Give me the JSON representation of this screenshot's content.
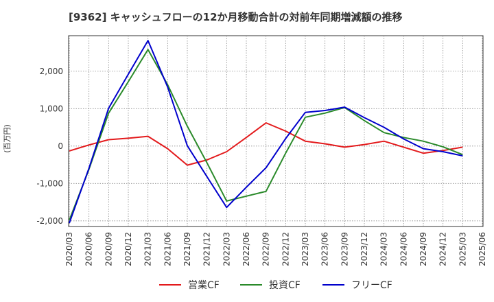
{
  "chart_data": {
    "type": "line",
    "title": "[9362]  キャッシュフローの12か月移動合計の対前年同期増減額の推移",
    "ylabel": "(百万円)",
    "xlabel": "",
    "x": [
      "2020/03",
      "2020/06",
      "2020/09",
      "2020/12",
      "2021/03",
      "2021/06",
      "2021/09",
      "2021/12",
      "2022/03",
      "2022/06",
      "2022/09",
      "2022/12",
      "2023/03",
      "2023/06",
      "2023/09",
      "2023/12",
      "2024/03",
      "2024/06",
      "2024/09",
      "2024/12",
      "2025/03",
      "2025/06"
    ],
    "ylim": [
      -2150,
      2950
    ],
    "yticks": [
      -2000,
      -1000,
      0,
      1000,
      2000
    ],
    "ytick_labels": [
      "-2,000",
      "-1,000",
      "0",
      "1,000",
      "2,000"
    ],
    "grid": true,
    "legend_position": "bottom",
    "series": [
      {
        "name": "営業CF",
        "color": "#e31a1c",
        "values": [
          -130,
          30,
          170,
          210,
          260,
          -70,
          -510,
          -370,
          -150,
          230,
          620,
          400,
          130,
          60,
          -30,
          40,
          130,
          -30,
          -190,
          -120,
          -30,
          null
        ]
      },
      {
        "name": "投資CF",
        "color": "#2a8a2a",
        "values": [
          -1980,
          -620,
          880,
          1720,
          2580,
          1640,
          530,
          -450,
          -1470,
          -1340,
          -1210,
          -190,
          770,
          880,
          1030,
          680,
          360,
          230,
          130,
          -20,
          -230,
          null
        ]
      },
      {
        "name": "フリーCF",
        "color": "#0000cc",
        "values": [
          -2060,
          -590,
          1010,
          1920,
          2820,
          1580,
          10,
          -820,
          -1640,
          -1100,
          -580,
          200,
          900,
          950,
          1040,
          760,
          500,
          190,
          -70,
          -150,
          -260,
          null
        ]
      }
    ]
  }
}
